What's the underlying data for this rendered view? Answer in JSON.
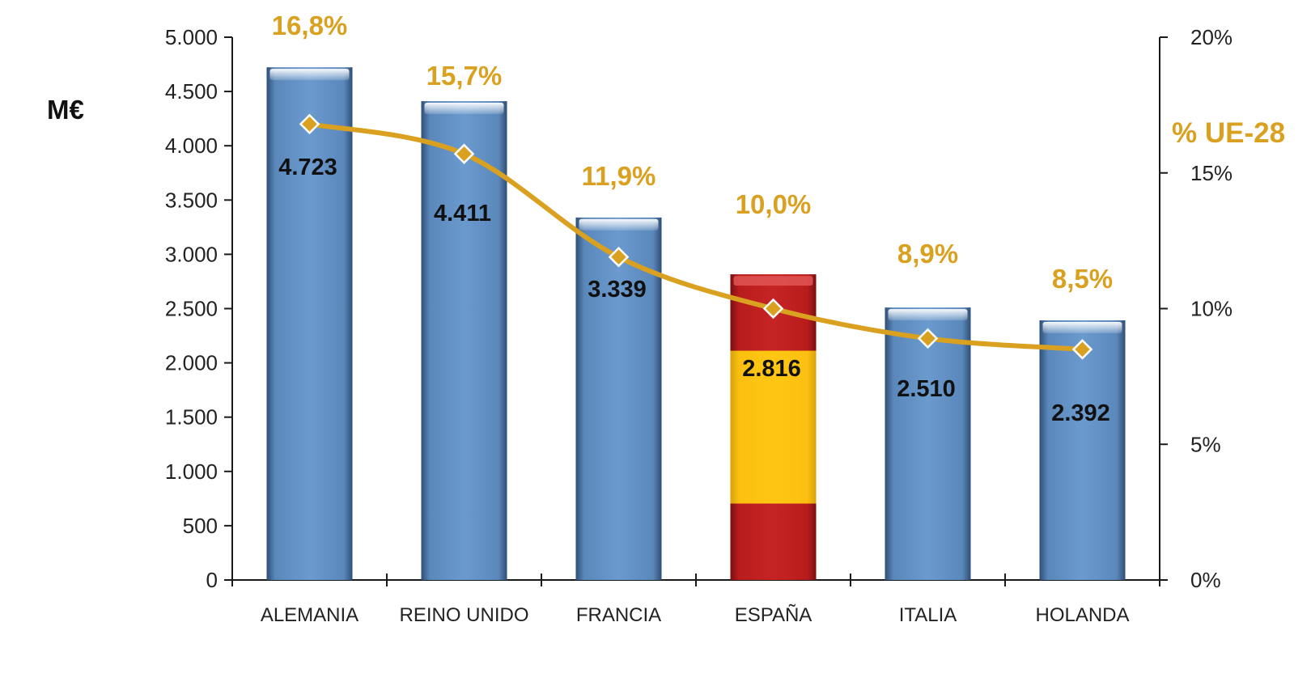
{
  "chart_data": {
    "type": "bar",
    "categories": [
      "ALEMANIA",
      "REINO UNIDO",
      "FRANCIA",
      "ESPAÑA",
      "ITALIA",
      "HOLANDA"
    ],
    "values": [
      4723,
      4411,
      3339,
      2816,
      2510,
      2392
    ],
    "value_labels": [
      "4.723",
      "4.411",
      "3.339",
      "2.816",
      "2.510",
      "2.392"
    ],
    "line_series": {
      "values": [
        16.8,
        15.7,
        11.9,
        10.0,
        8.9,
        8.5
      ],
      "labels": [
        "16,8%",
        "15,7%",
        "11,9%",
        "10,0%",
        "8,9%",
        "8,5%"
      ]
    },
    "ylabel": "M€",
    "y2label": "% UE-28",
    "ylim": [
      0,
      5000
    ],
    "y2lim": [
      0,
      20
    ],
    "yticks": [
      0,
      500,
      1000,
      1500,
      2000,
      2500,
      3000,
      3500,
      4000,
      4500,
      5000
    ],
    "ytick_labels": [
      "0",
      "500",
      "1.000",
      "1.500",
      "2.000",
      "2.500",
      "3.000",
      "3.500",
      "4.000",
      "4.500",
      "5.000"
    ],
    "y2ticks": [
      0,
      5,
      10,
      15,
      20
    ],
    "y2tick_labels": [
      "0%",
      "5%",
      "10%",
      "15%",
      "20%"
    ],
    "grid": false,
    "colors": {
      "bar": "#5f8fc3",
      "highlight_red": "#c0201f",
      "highlight_yellow": "#fec212",
      "line": "#daa01f",
      "axis": "#1a1a1a"
    }
  }
}
